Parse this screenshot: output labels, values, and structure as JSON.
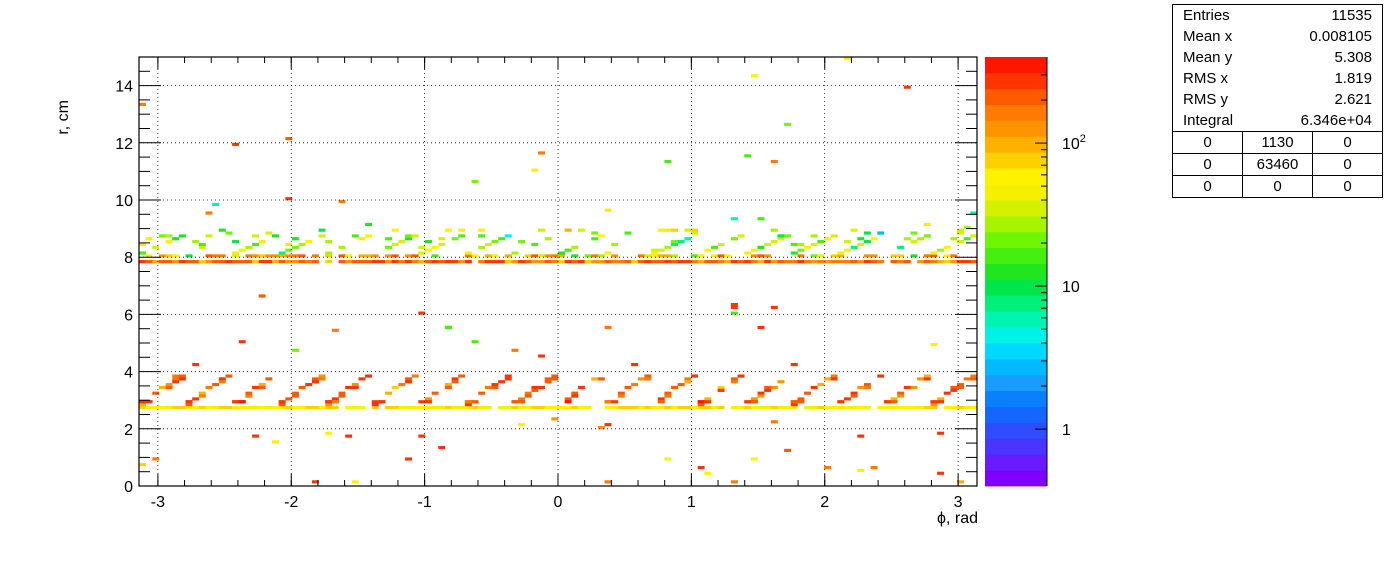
{
  "chart_data": {
    "type": "heatmap",
    "xlabel": "ϕ, rad",
    "ylabel": "r, cm",
    "xlim": [
      -3.1416,
      3.1416
    ],
    "ylim": [
      0,
      15
    ],
    "x_ticks": [
      "-3",
      "-2",
      "-1",
      "0",
      "1",
      "2",
      "3"
    ],
    "y_ticks": [
      "0",
      "2",
      "4",
      "6",
      "8",
      "10",
      "12",
      "14"
    ],
    "grid": true,
    "z_scale": "log",
    "zlim": [
      0.4,
      400
    ],
    "z_ticks": [
      "1",
      "10",
      "10^2"
    ],
    "bands": [
      {
        "r": 2.75,
        "description": "dense inner ring band",
        "typical_counts": 50
      },
      {
        "r": 3.0,
        "description": "sawtooth structure above inner band",
        "typical_counts": 120
      },
      {
        "r": 7.9,
        "description": "dense outer ring band",
        "typical_counts": 120
      },
      {
        "r": 8.5,
        "description": "sawtooth structure above outer band",
        "typical_counts": 20
      }
    ],
    "sparse_points": [
      {
        "x": -3.1,
        "y": 13.3,
        "z": 150
      },
      {
        "x": -2.4,
        "y": 11.9,
        "z": 300
      },
      {
        "x": -2.0,
        "y": 12.2,
        "z": 200
      },
      {
        "x": -2.0,
        "y": 10.1,
        "z": 300
      },
      {
        "x": -1.6,
        "y": 9.9,
        "z": 150
      },
      {
        "x": -0.1,
        "y": 11.7,
        "z": 150
      },
      {
        "x": -0.15,
        "y": 11.1,
        "z": 60
      },
      {
        "x": -0.6,
        "y": 10.7,
        "z": 20
      },
      {
        "x": 0.8,
        "y": 11.3,
        "z": 15
      },
      {
        "x": 1.4,
        "y": 11.5,
        "z": 15
      },
      {
        "x": 1.45,
        "y": 14.3,
        "z": 60
      },
      {
        "x": 1.7,
        "y": 12.7,
        "z": 20
      },
      {
        "x": 1.6,
        "y": 11.3,
        "z": 150
      },
      {
        "x": 2.15,
        "y": 14.9,
        "z": 60
      },
      {
        "x": 2.6,
        "y": 13.9,
        "z": 300
      },
      {
        "x": -2.55,
        "y": 9.8,
        "z": 6
      },
      {
        "x": -2.6,
        "y": 9.5,
        "z": 150
      },
      {
        "x": 0.35,
        "y": 9.7,
        "z": 40
      },
      {
        "x": 1.3,
        "y": 9.3,
        "z": 6
      },
      {
        "x": 1.5,
        "y": 9.3,
        "z": 15
      },
      {
        "x": 2.4,
        "y": 8.8,
        "z": 3
      },
      {
        "x": 3.1,
        "y": 9.5,
        "z": 6
      },
      {
        "x": -1.0,
        "y": 6.1,
        "z": 300
      },
      {
        "x": 1.3,
        "y": 6.3,
        "z": 300
      },
      {
        "x": 1.3,
        "y": 6.1,
        "z": 15
      },
      {
        "x": -2.7,
        "y": 4.3,
        "z": 300
      },
      {
        "x": -2.35,
        "y": 5.0,
        "z": 300
      },
      {
        "x": -1.95,
        "y": 4.7,
        "z": 20
      },
      {
        "x": 1.5,
        "y": 5.5,
        "z": 300
      },
      {
        "x": 1.75,
        "y": 4.3,
        "z": 300
      },
      {
        "x": -1.65,
        "y": 5.4,
        "z": 150
      },
      {
        "x": -0.8,
        "y": 5.5,
        "z": 15
      },
      {
        "x": -0.6,
        "y": 5.0,
        "z": 15
      },
      {
        "x": -0.3,
        "y": 4.7,
        "z": 150
      },
      {
        "x": -0.1,
        "y": 4.6,
        "z": 300
      },
      {
        "x": 0.35,
        "y": 5.5,
        "z": 150
      },
      {
        "x": 0.55,
        "y": 4.2,
        "z": 300
      },
      {
        "x": 2.8,
        "y": 4.9,
        "z": 60
      },
      {
        "x": -2.25,
        "y": 1.7,
        "z": 300
      },
      {
        "x": -2.1,
        "y": 1.5,
        "z": 60
      },
      {
        "x": -1.7,
        "y": 1.9,
        "z": 60
      },
      {
        "x": -1.55,
        "y": 1.7,
        "z": 300
      },
      {
        "x": -1.0,
        "y": 1.7,
        "z": 300
      },
      {
        "x": -0.85,
        "y": 1.3,
        "z": 300
      },
      {
        "x": -0.25,
        "y": 2.1,
        "z": 60
      },
      {
        "x": 0.8,
        "y": 0.9,
        "z": 60
      },
      {
        "x": 1.05,
        "y": 0.7,
        "z": 300
      },
      {
        "x": 1.1,
        "y": 0.4,
        "z": 60
      },
      {
        "x": 1.3,
        "y": 0.1,
        "z": 150
      },
      {
        "x": 1.45,
        "y": 0.9,
        "z": 60
      },
      {
        "x": 2.0,
        "y": 0.7,
        "z": 150
      },
      {
        "x": 2.25,
        "y": 0.5,
        "z": 60
      },
      {
        "x": 2.35,
        "y": 0.7,
        "z": 150
      },
      {
        "x": 2.85,
        "y": 1.9,
        "z": 300
      },
      {
        "x": 2.85,
        "y": 0.4,
        "z": 300
      },
      {
        "x": -3.0,
        "y": 0.9,
        "z": 150
      },
      {
        "x": -1.8,
        "y": 0.1,
        "z": 300
      },
      {
        "x": -1.5,
        "y": 0.1,
        "z": 60
      },
      {
        "x": 0.35,
        "y": 0.1,
        "z": 150
      },
      {
        "x": 1.6,
        "y": 2.3,
        "z": 150
      },
      {
        "x": 2.25,
        "y": 1.7,
        "z": 300
      }
    ]
  },
  "stats": {
    "rows": [
      {
        "label": "Entries",
        "value": "11535"
      },
      {
        "label": "Mean x",
        "value": "0.008105"
      },
      {
        "label": "Mean y",
        "value": "5.308"
      },
      {
        "label": "RMS x",
        "value": "1.819"
      },
      {
        "label": "RMS y",
        "value": "2.621"
      },
      {
        "label": "Integral",
        "value": "6.346e+04"
      }
    ],
    "grid": [
      [
        "0",
        "1130",
        "0"
      ],
      [
        "0",
        "63460",
        "0"
      ],
      [
        "0",
        "0",
        "0"
      ]
    ]
  }
}
